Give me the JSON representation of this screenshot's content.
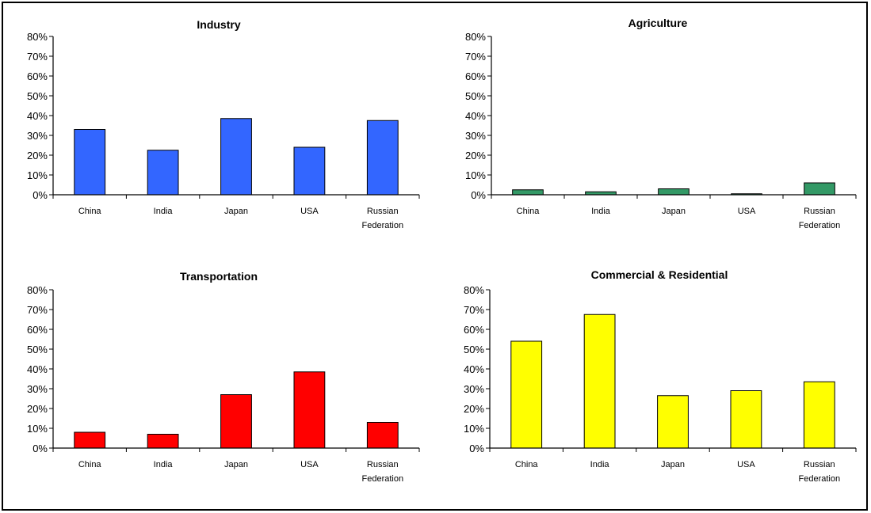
{
  "chart_data": [
    {
      "type": "bar",
      "title": "Industry",
      "categories": [
        [
          "China"
        ],
        [
          "India"
        ],
        [
          "Japan"
        ],
        [
          "USA"
        ],
        [
          "Russian",
          "Federation"
        ]
      ],
      "values": [
        0.33,
        0.225,
        0.385,
        0.24,
        0.375
      ],
      "ylim": [
        0,
        0.8
      ],
      "yticks": [
        "0%",
        "10%",
        "20%",
        "30%",
        "40%",
        "50%",
        "60%",
        "70%",
        "80%"
      ],
      "color": "#3366ff",
      "grid": false,
      "legend": "none"
    },
    {
      "type": "bar",
      "title": "Agriculture",
      "categories": [
        [
          "China"
        ],
        [
          "India"
        ],
        [
          "Japan"
        ],
        [
          "USA"
        ],
        [
          "Russian",
          "Federation"
        ]
      ],
      "values": [
        0.025,
        0.015,
        0.03,
        0.005,
        0.06
      ],
      "ylim": [
        0,
        0.8
      ],
      "yticks": [
        "0%",
        "10%",
        "20%",
        "30%",
        "40%",
        "50%",
        "60%",
        "70%",
        "80%"
      ],
      "color": "#339966",
      "grid": false,
      "legend": "none"
    },
    {
      "type": "bar",
      "title": "Transportation",
      "categories": [
        [
          "China"
        ],
        [
          "India"
        ],
        [
          "Japan"
        ],
        [
          "USA"
        ],
        [
          "Russian",
          "Federation"
        ]
      ],
      "values": [
        0.08,
        0.07,
        0.27,
        0.385,
        0.13
      ],
      "ylim": [
        0,
        0.8
      ],
      "yticks": [
        "0%",
        "10%",
        "20%",
        "30%",
        "40%",
        "50%",
        "60%",
        "70%",
        "80%"
      ],
      "color": "#ff0000",
      "grid": false,
      "legend": "none"
    },
    {
      "type": "bar",
      "title": "Commercial & Residential",
      "categories": [
        [
          "China"
        ],
        [
          "India"
        ],
        [
          "Japan"
        ],
        [
          "USA"
        ],
        [
          "Russian",
          "Federation"
        ]
      ],
      "values": [
        0.54,
        0.675,
        0.265,
        0.29,
        0.335
      ],
      "ylim": [
        0,
        0.8
      ],
      "yticks": [
        "0%",
        "10%",
        "20%",
        "30%",
        "40%",
        "50%",
        "60%",
        "70%",
        "80%"
      ],
      "color": "#ffff00",
      "grid": false,
      "legend": "none"
    }
  ]
}
